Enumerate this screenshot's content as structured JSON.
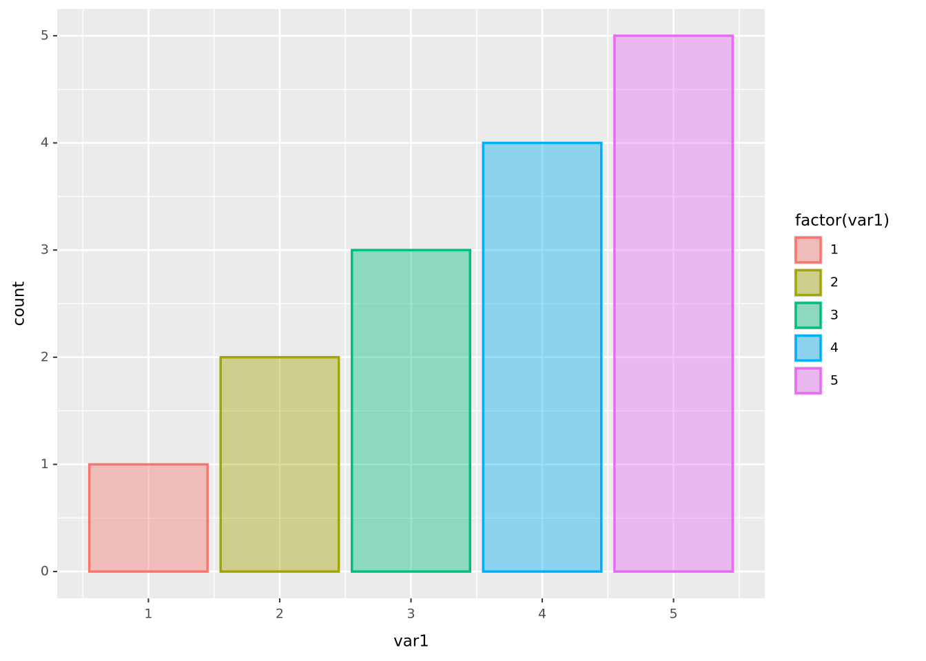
{
  "chart_data": {
    "type": "bar",
    "x": [
      1,
      2,
      3,
      4,
      5
    ],
    "values": [
      1,
      2,
      3,
      4,
      5
    ],
    "colors": [
      "#F8766D",
      "#A3A500",
      "#00BF7D",
      "#00B0F6",
      "#E76BF3"
    ],
    "x_label": "var1",
    "y_label": "count",
    "xlim": [
      0.305,
      5.695
    ],
    "xticks": [
      1,
      2,
      3,
      4,
      5
    ],
    "x_minor_ticks": [
      0.5,
      1.5,
      2.5,
      3.5,
      4.5,
      5.5
    ],
    "ylim": [
      -0.25,
      5.25
    ],
    "yticks": [
      0,
      1,
      2,
      3,
      4,
      5
    ],
    "y_minor_ticks": [
      0.5,
      1.5,
      2.5,
      3.5,
      4.5
    ],
    "grid": true,
    "legend": {
      "title": "factor(var1)",
      "labels": [
        "1",
        "2",
        "3",
        "4",
        "5"
      ],
      "position": "right"
    }
  }
}
